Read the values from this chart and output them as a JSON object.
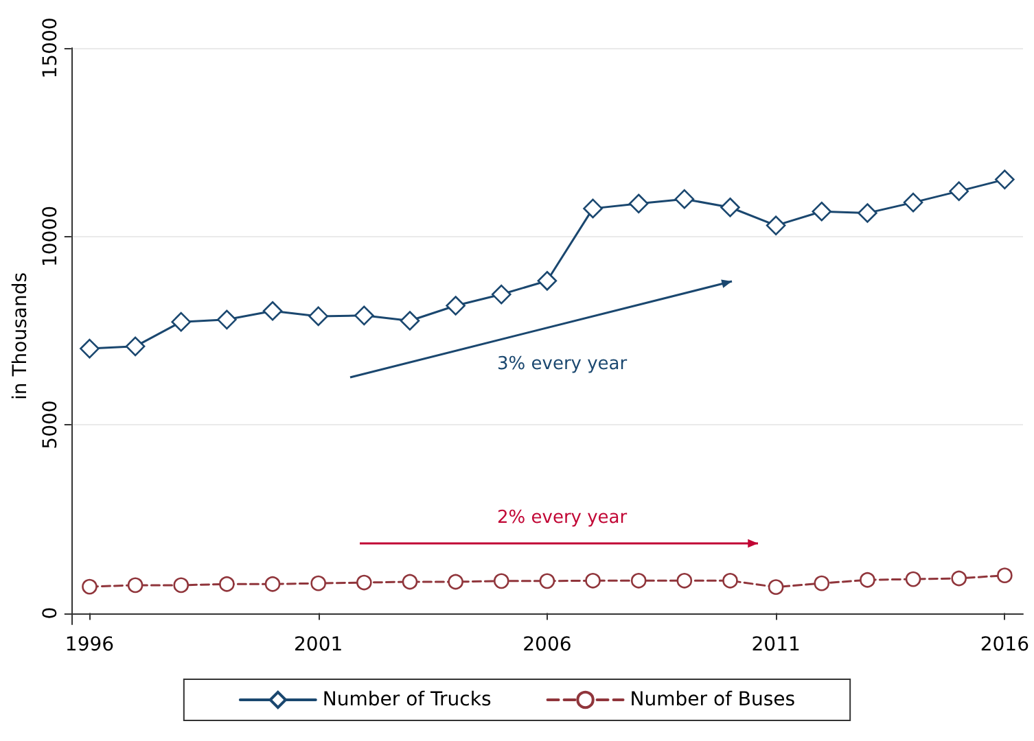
{
  "chart_data": {
    "type": "line",
    "ylabel": "in Thousands",
    "x": [
      1996,
      1997,
      1998,
      1999,
      2000,
      2001,
      2002,
      2003,
      2004,
      2005,
      2006,
      2007,
      2008,
      2009,
      2010,
      2011,
      2012,
      2013,
      2014,
      2015,
      2016
    ],
    "series": [
      {
        "name": "Number of Trucks",
        "color": "#1a476f",
        "marker": "diamond",
        "line_style": "solid",
        "values": [
          7020,
          7080,
          7730,
          7790,
          8020,
          7880,
          7900,
          7760,
          8160,
          8460,
          8820,
          10740,
          10870,
          10990,
          10770,
          10290,
          10660,
          10620,
          10900,
          11200,
          11510
        ]
      },
      {
        "name": "Number of Buses",
        "color": "#90353b",
        "marker": "circle",
        "line_style": "dashed",
        "values": [
          700,
          740,
          740,
          770,
          770,
          790,
          810,
          830,
          830,
          850,
          850,
          860,
          860,
          860,
          860,
          690,
          790,
          880,
          900,
          920,
          1000
        ]
      }
    ],
    "xlim": [
      1995.6,
      2016.4
    ],
    "xticks": [
      1996,
      2001,
      2006,
      2011,
      2016
    ],
    "ylim": [
      -300,
      15000
    ],
    "yticks": [
      0,
      5000,
      10000,
      15000
    ],
    "grid": "y",
    "legend": "bottom",
    "annotations": [
      "3% every year",
      "2% every year"
    ]
  }
}
